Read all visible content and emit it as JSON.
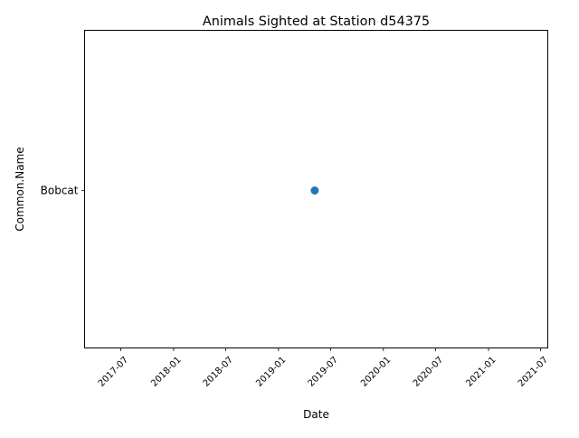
{
  "chart_data": {
    "type": "scatter",
    "title": "Animals Sighted at Station d54375",
    "xlabel": "Date",
    "ylabel": "Common.Name",
    "x_axis_type": "date",
    "x_ticks": [
      "2017-07",
      "2018-01",
      "2018-07",
      "2019-01",
      "2019-07",
      "2020-01",
      "2020-07",
      "2021-01",
      "2021-07"
    ],
    "y_categories": [
      "Bobcat"
    ],
    "points": [
      {
        "x": "2019-05-07",
        "y": "Bobcat"
      }
    ],
    "marker_color": "#1f77b4",
    "grid": false,
    "legend": "none"
  }
}
